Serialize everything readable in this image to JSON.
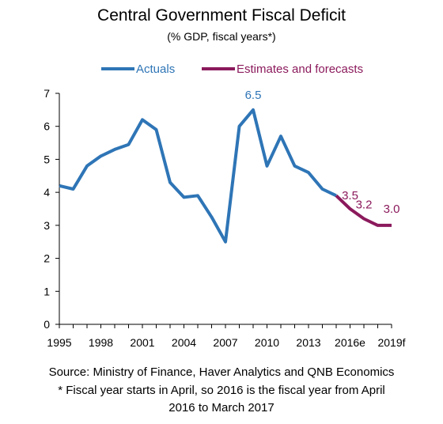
{
  "title": "Central Government Fiscal Deficit",
  "subtitle": "(% GDP, fiscal years*)",
  "legend": {
    "actuals_label": "Actuals",
    "forecast_label": "Estimates and forecasts"
  },
  "colors": {
    "actuals": "#2E75B6",
    "forecast": "#8B1A5C",
    "axis": "#000000"
  },
  "source_note": "Source: Ministry of Finance, Haver Analytics and QNB Economics",
  "footnote_line1": "* Fiscal year starts in April, so 2016 is the fiscal year from April",
  "footnote_line2": "2016 to March 2017",
  "chart_data": {
    "type": "line",
    "title": "Central Government Fiscal Deficit",
    "subtitle": "(% GDP, fiscal years*)",
    "xlabel": "",
    "ylabel": "",
    "ylim": [
      0,
      7
    ],
    "yticks": [
      "0",
      "1",
      "2",
      "3",
      "4",
      "5",
      "6",
      "7"
    ],
    "x": [
      1995,
      1996,
      1997,
      1998,
      1999,
      2000,
      2001,
      2002,
      2003,
      2004,
      2005,
      2006,
      2007,
      2008,
      2009,
      2010,
      2011,
      2012,
      2013,
      2014,
      2015,
      2016,
      2017,
      2018,
      2019
    ],
    "xtick_labels": [
      {
        "x": 1995,
        "label": "1995"
      },
      {
        "x": 1998,
        "label": "1998"
      },
      {
        "x": 2001,
        "label": "2001"
      },
      {
        "x": 2004,
        "label": "2004"
      },
      {
        "x": 2007,
        "label": "2007"
      },
      {
        "x": 2010,
        "label": "2010"
      },
      {
        "x": 2013,
        "label": "2013"
      },
      {
        "x": 2016,
        "label": "2016e"
      },
      {
        "x": 2019,
        "label": "2019f"
      }
    ],
    "legend_position": "top",
    "grid": false,
    "series": [
      {
        "name": "Actuals",
        "color": "#2E75B6",
        "points": [
          [
            1995,
            4.2
          ],
          [
            1996,
            4.1
          ],
          [
            1997,
            4.8
          ],
          [
            1998,
            5.1
          ],
          [
            1999,
            5.3
          ],
          [
            2000,
            5.45
          ],
          [
            2001,
            6.2
          ],
          [
            2002,
            5.9
          ],
          [
            2003,
            4.3
          ],
          [
            2004,
            3.85
          ],
          [
            2005,
            3.9
          ],
          [
            2006,
            3.25
          ],
          [
            2007,
            2.5
          ],
          [
            2008,
            6.0
          ],
          [
            2009,
            6.5
          ],
          [
            2010,
            4.8
          ],
          [
            2011,
            5.7
          ],
          [
            2012,
            4.8
          ],
          [
            2013,
            4.6
          ],
          [
            2014,
            4.1
          ],
          [
            2015,
            3.9
          ]
        ]
      },
      {
        "name": "Estimates and forecasts",
        "color": "#8B1A5C",
        "points": [
          [
            2015,
            3.9
          ],
          [
            2016,
            3.5
          ],
          [
            2017,
            3.2
          ],
          [
            2018,
            3.0
          ],
          [
            2019,
            3.0
          ]
        ]
      }
    ],
    "annotations": [
      {
        "x": 2009,
        "y": 6.5,
        "text": "6.5",
        "color": "#2E75B6"
      },
      {
        "x": 2016,
        "y": 3.5,
        "text": "3.5",
        "color": "#8B1A5C"
      },
      {
        "x": 2017,
        "y": 3.2,
        "text": "3.2",
        "color": "#8B1A5C"
      },
      {
        "x": 2019,
        "y": 3.0,
        "text": "3.0",
        "color": "#8B1A5C"
      }
    ]
  }
}
